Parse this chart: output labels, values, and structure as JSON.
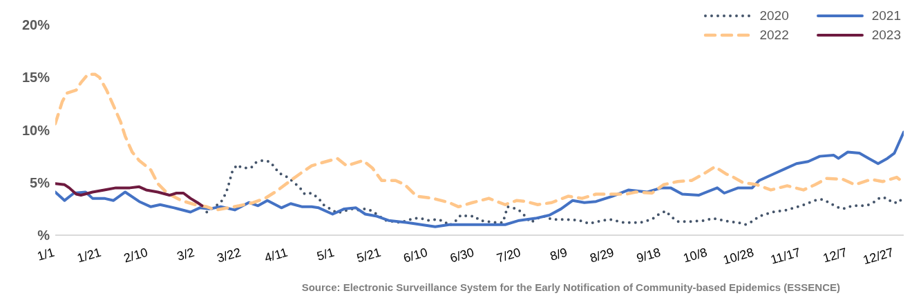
{
  "chart_data": {
    "type": "line",
    "xlim": [
      "--01-01",
      "--12-31"
    ],
    "xticks": [
      {
        "value": "--01-01",
        "label": "1/1"
      },
      {
        "value": "--01-21",
        "label": "1/21"
      },
      {
        "value": "--02-10",
        "label": "2/10"
      },
      {
        "value": "--03-02",
        "label": "3/2"
      },
      {
        "value": "--03-22",
        "label": "3/22"
      },
      {
        "value": "--04-11",
        "label": "4/11"
      },
      {
        "value": "--05-01",
        "label": "5/1"
      },
      {
        "value": "--05-21",
        "label": "5/21"
      },
      {
        "value": "--06-10",
        "label": "6/10"
      },
      {
        "value": "--06-30",
        "label": "6/30"
      },
      {
        "value": "--07-20",
        "label": "7/20"
      },
      {
        "value": "--08-09",
        "label": "8/9"
      },
      {
        "value": "--08-29",
        "label": "8/29"
      },
      {
        "value": "--09-18",
        "label": "9/18"
      },
      {
        "value": "--10-08",
        "label": "10/8"
      },
      {
        "value": "--10-28",
        "label": "10/28"
      },
      {
        "value": "--11-17",
        "label": "11/17"
      },
      {
        "value": "--12-07",
        "label": "12/7"
      },
      {
        "value": "--12-27",
        "label": "12/27"
      }
    ],
    "ylim": [
      0,
      20
    ],
    "yticks": [
      {
        "value": 0,
        "label": "%"
      },
      {
        "value": 5,
        "label": "5%"
      },
      {
        "value": 10,
        "label": "10%"
      },
      {
        "value": 15,
        "label": "15%"
      },
      {
        "value": 20,
        "label": "20%"
      }
    ],
    "grid": false,
    "legend": "top right",
    "annotations": [
      "Source: Electronic Surveillance System for the Early Notification of Community-based Epidemics (ESSENCE)"
    ],
    "series": [
      {
        "name": "2020",
        "color": "#44546a",
        "line_style": "dotted",
        "x": [
          "--03-07",
          "--03-11",
          "--03-13",
          "--03-15",
          "--03-16",
          "--03-17",
          "--03-18",
          "--03-20",
          "--03-22",
          "--03-26",
          "--03-28",
          "--03-31",
          "--04-03",
          "--04-05",
          "--04-07",
          "--04-10",
          "--04-13",
          "--04-16",
          "--04-18",
          "--04-21",
          "--04-24",
          "--04-26",
          "--04-29",
          "--05-02",
          "--05-05",
          "--05-08",
          "--05-11",
          "--05-14",
          "--05-17",
          "--05-20",
          "--05-23",
          "--05-29",
          "--06-01",
          "--06-04",
          "--06-07",
          "--06-10",
          "--06-14",
          "--06-17",
          "--06-19",
          "--06-22",
          "--06-24",
          "--06-27",
          "--06-30",
          "--07-02",
          "--07-05",
          "--07-09",
          "--07-12",
          "--07-13",
          "--07-14",
          "--07-18",
          "--07-20",
          "--07-24",
          "--07-27",
          "--07-30",
          "--08-02",
          "--08-08",
          "--08-14",
          "--08-18",
          "--08-24",
          "--08-27",
          "--09-02",
          "--09-09",
          "--09-14",
          "--09-17",
          "--09-20",
          "--09-22",
          "--09-25",
          "--10-01",
          "--10-07",
          "--10-10",
          "--10-17",
          "--10-21",
          "--10-24",
          "--10-27",
          "--10-30",
          "--11-05",
          "--11-11",
          "--11-17",
          "--11-23",
          "--11-26",
          "--11-29",
          "--12-02",
          "--12-05",
          "--12-09",
          "--12-15",
          "--12-18",
          "--12-21",
          "--12-24",
          "--12-26",
          "--12-29",
          "--12-31"
        ],
        "values": [
          2.2,
          2.8,
          3.1,
          3.9,
          4.5,
          5.3,
          6.1,
          6.7,
          6.4,
          6.4,
          6.9,
          7.1,
          7.0,
          6.5,
          5.9,
          5.6,
          5.1,
          4.5,
          3.9,
          4.0,
          3.5,
          2.9,
          2.5,
          2.1,
          2.3,
          2.5,
          2.4,
          2.5,
          2.3,
          1.8,
          1.4,
          1.2,
          1.4,
          1.6,
          1.6,
          1.4,
          1.5,
          1.3,
          0.9,
          1.4,
          1.9,
          1.8,
          1.8,
          1.4,
          1.3,
          1.2,
          1.2,
          1.9,
          2.7,
          2.5,
          2.2,
          1.2,
          1.6,
          1.8,
          1.5,
          1.5,
          1.4,
          1.1,
          1.4,
          1.5,
          1.2,
          1.2,
          1.5,
          2.0,
          2.3,
          1.8,
          1.3,
          1.3,
          1.4,
          1.6,
          1.3,
          1.2,
          1.0,
          1.3,
          1.8,
          2.2,
          2.4,
          2.8,
          3.3,
          3.4,
          3.1,
          2.7,
          2.5,
          2.8,
          2.8,
          3.1,
          3.6,
          3.5,
          3.1,
          3.1,
          3.8
        ]
      },
      {
        "name": "2021",
        "color": "#4472c4",
        "line_style": "solid",
        "x": [
          "--01-01",
          "--01-05",
          "--01-09",
          "--01-14",
          "--01-17",
          "--01-22",
          "--01-26",
          "--01-31",
          "--02-06",
          "--02-11",
          "--02-15",
          "--02-21",
          "--02-28",
          "--03-04",
          "--03-08",
          "--03-13",
          "--03-19",
          "--03-25",
          "--03-29",
          "--04-02",
          "--04-08",
          "--04-12",
          "--04-17",
          "--04-21",
          "--04-24",
          "--04-30",
          "--05-05",
          "--05-10",
          "--05-14",
          "--05-19",
          "--05-24",
          "--06-01",
          "--06-07",
          "--06-13",
          "--06-19",
          "--06-25",
          "--07-03",
          "--07-13",
          "--07-19",
          "--07-26",
          "--08-01",
          "--08-06",
          "--08-11",
          "--08-16",
          "--08-21",
          "--08-28",
          "--09-04",
          "--09-12",
          "--09-18",
          "--09-22",
          "--09-27",
          "--10-04",
          "--10-12",
          "--10-15",
          "--10-21",
          "--10-27",
          "--10-30",
          "--11-05",
          "--11-10",
          "--11-15",
          "--11-20",
          "--11-25",
          "--12-01",
          "--12-03",
          "--12-07",
          "--12-12",
          "--12-16",
          "--12-20",
          "--12-24",
          "--12-27",
          "--12-29",
          "--12-31"
        ],
        "values": [
          4.1,
          3.3,
          4.0,
          4.1,
          3.5,
          3.5,
          3.3,
          4.1,
          3.2,
          2.7,
          2.9,
          2.6,
          2.2,
          2.6,
          2.5,
          2.7,
          2.4,
          3.1,
          2.8,
          3.3,
          2.6,
          3.0,
          2.7,
          2.7,
          2.6,
          2.0,
          2.5,
          2.6,
          2.0,
          1.8,
          1.4,
          1.2,
          1.0,
          0.8,
          1.0,
          1.0,
          1.0,
          1.0,
          1.4,
          1.6,
          1.9,
          2.5,
          3.3,
          3.1,
          3.2,
          3.7,
          4.3,
          4.1,
          4.5,
          4.5,
          3.9,
          3.8,
          4.5,
          4.0,
          4.5,
          4.5,
          5.2,
          5.8,
          6.3,
          6.8,
          7.0,
          7.5,
          7.6,
          7.3,
          7.9,
          7.8,
          7.3,
          6.8,
          7.3,
          7.8,
          8.8,
          9.8
        ]
      },
      {
        "name": "2022",
        "color": "#ffc68a",
        "line_style": "dashed",
        "x": [
          "--01-01",
          "--01-04",
          "--01-06",
          "--01-10",
          "--01-12",
          "--01-15",
          "--01-18",
          "--01-20",
          "--01-23",
          "--01-26",
          "--01-29",
          "--01-31",
          "--02-03",
          "--02-06",
          "--02-11",
          "--02-14",
          "--02-18",
          "--02-24",
          "--03-02",
          "--03-07",
          "--03-11",
          "--03-16",
          "--03-21",
          "--03-27",
          "--04-01",
          "--04-06",
          "--04-12",
          "--04-17",
          "--04-21",
          "--04-24",
          "--05-02",
          "--05-06",
          "--05-13",
          "--05-17",
          "--05-21",
          "--05-27",
          "--05-31",
          "--06-05",
          "--06-12",
          "--06-19",
          "--06-23",
          "--06-29",
          "--07-06",
          "--07-13",
          "--07-18",
          "--07-22",
          "--07-27",
          "--08-02",
          "--08-09",
          "--08-15",
          "--08-21",
          "--08-29",
          "--09-03",
          "--09-07",
          "--09-14",
          "--09-19",
          "--09-25",
          "--10-01",
          "--10-06",
          "--10-11",
          "--10-16",
          "--10-19",
          "--10-23",
          "--10-29",
          "--11-04",
          "--11-11",
          "--11-18",
          "--11-23",
          "--11-28",
          "--12-05",
          "--12-10",
          "--12-17",
          "--12-22",
          "--12-28",
          "--12-31"
        ],
        "values": [
          10.6,
          12.7,
          13.5,
          13.8,
          14.5,
          15.3,
          15.3,
          15.0,
          13.8,
          12.3,
          10.8,
          9.4,
          7.9,
          7.1,
          6.2,
          4.9,
          4.0,
          3.3,
          2.9,
          2.7,
          2.4,
          2.6,
          2.8,
          3.1,
          3.5,
          4.2,
          5.2,
          6.0,
          6.6,
          6.8,
          7.3,
          6.6,
          7.1,
          6.4,
          5.2,
          5.2,
          4.8,
          3.7,
          3.5,
          3.1,
          2.7,
          3.1,
          3.5,
          2.9,
          3.3,
          3.2,
          2.9,
          3.1,
          3.7,
          3.5,
          3.9,
          3.9,
          3.9,
          4.1,
          4.0,
          4.8,
          5.1,
          5.2,
          5.8,
          6.5,
          5.8,
          5.5,
          5.0,
          4.8,
          4.3,
          4.7,
          4.3,
          4.8,
          5.4,
          5.3,
          4.8,
          5.3,
          5.1,
          5.5,
          5.0
        ]
      },
      {
        "name": "2023",
        "color": "#6e1a3f",
        "line_style": "solid",
        "x": [
          "--01-01",
          "--01-05",
          "--01-07",
          "--01-10",
          "--01-12",
          "--01-17",
          "--01-22",
          "--01-27",
          "--02-02",
          "--02-06",
          "--02-09",
          "--02-14",
          "--02-19",
          "--02-22",
          "--02-25",
          "--02-28",
          "--03-03",
          "--03-05"
        ],
        "values": [
          4.9,
          4.8,
          4.5,
          3.9,
          3.8,
          4.1,
          4.3,
          4.5,
          4.5,
          4.6,
          4.3,
          4.1,
          3.8,
          4.0,
          4.0,
          3.5,
          3.1,
          2.8
        ]
      }
    ]
  }
}
